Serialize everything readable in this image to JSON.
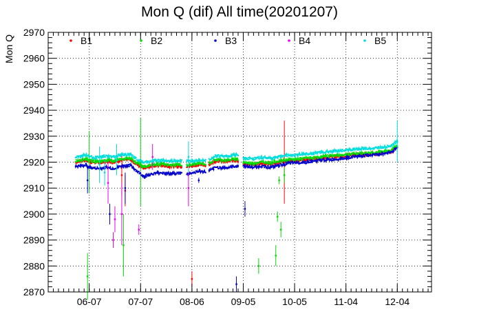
{
  "chart_data": {
    "type": "scatter",
    "title": "Mon Q (dif) All time(20201207)",
    "xlabel": "",
    "ylabel": "Mon Q",
    "x_axis": "date",
    "xlim": [
      "2020-05-14",
      "2020-12-24"
    ],
    "ylim": [
      2870,
      2970
    ],
    "yticks": [
      2870,
      2880,
      2890,
      2900,
      2910,
      2920,
      2930,
      2940,
      2950,
      2960,
      2970
    ],
    "xticks": [
      "06-07",
      "07-07",
      "08-06",
      "09-05",
      "10-05",
      "11-04",
      "12-04"
    ],
    "xtick_dates": [
      "2020-06-07",
      "2020-07-07",
      "2020-08-06",
      "2020-09-05",
      "2020-10-05",
      "2020-11-04",
      "2020-12-04"
    ],
    "grid": true,
    "legend_position": "top",
    "series": [
      {
        "name": "B1",
        "color": "#ff0000",
        "trend": [
          [
            "2020-05-30",
            2920.0
          ],
          [
            "2020-06-05",
            2920.8
          ],
          [
            "2020-06-08",
            2920.0
          ],
          [
            "2020-06-13",
            2919.8
          ],
          [
            "2020-06-17",
            2920.3
          ],
          [
            "2020-06-21",
            2920.0
          ],
          [
            "2020-06-26",
            2920.8
          ],
          [
            "2020-07-01",
            2921.0
          ],
          [
            "2020-07-05",
            2919.0
          ],
          [
            "2020-07-09",
            2917.8
          ],
          [
            "2020-07-14",
            2918.5
          ],
          [
            "2020-07-19",
            2918.8
          ],
          [
            "2020-07-24",
            2918.3
          ],
          [
            "2020-07-29",
            2918.6
          ],
          [
            "2020-08-04",
            2918.3
          ],
          [
            "2020-08-10",
            2919.0
          ],
          [
            "2020-08-15",
            2918.7
          ],
          [
            "2020-08-20",
            2920.5
          ],
          [
            "2020-08-26",
            2920.2
          ],
          [
            "2020-09-01",
            2920.8
          ],
          [
            "2020-09-06",
            2919.3
          ],
          [
            "2020-09-11",
            2919.1
          ],
          [
            "2020-09-16",
            2919.6
          ],
          [
            "2020-09-21",
            2919.3
          ],
          [
            "2020-09-26",
            2920.0
          ],
          [
            "2020-10-01",
            2920.4
          ],
          [
            "2020-10-06",
            2920.6
          ],
          [
            "2020-10-11",
            2921.0
          ],
          [
            "2020-10-16",
            2921.2
          ],
          [
            "2020-10-21",
            2921.6
          ],
          [
            "2020-10-26",
            2922.0
          ],
          [
            "2020-10-31",
            2922.2
          ],
          [
            "2020-11-05",
            2922.5
          ],
          [
            "2020-11-10",
            2922.8
          ],
          [
            "2020-11-15",
            2923.0
          ],
          [
            "2020-11-20",
            2923.2
          ],
          [
            "2020-11-25",
            2923.5
          ],
          [
            "2020-11-30",
            2924.0
          ],
          [
            "2020-12-04",
            2926.0
          ]
        ],
        "outliers": [
          [
            "2020-06-26",
            2915.0,
            8.0
          ],
          [
            "2020-06-28",
            2909.0,
            6.0
          ],
          [
            "2020-08-06",
            2875.0,
            3.0
          ],
          [
            "2020-09-29",
            2920.0,
            16.0
          ]
        ]
      },
      {
        "name": "B2",
        "color": "#00dd00",
        "trend": [
          [
            "2020-05-30",
            2920.5
          ],
          [
            "2020-06-05",
            2921.3
          ],
          [
            "2020-06-08",
            2920.5
          ],
          [
            "2020-06-13",
            2920.3
          ],
          [
            "2020-06-17",
            2920.8
          ],
          [
            "2020-06-21",
            2920.5
          ],
          [
            "2020-06-26",
            2921.3
          ],
          [
            "2020-07-01",
            2921.5
          ],
          [
            "2020-07-05",
            2919.5
          ],
          [
            "2020-07-09",
            2918.3
          ],
          [
            "2020-07-14",
            2919.0
          ],
          [
            "2020-07-19",
            2919.3
          ],
          [
            "2020-07-24",
            2918.8
          ],
          [
            "2020-07-29",
            2919.1
          ],
          [
            "2020-08-04",
            2918.8
          ],
          [
            "2020-08-10",
            2919.5
          ],
          [
            "2020-08-15",
            2919.2
          ],
          [
            "2020-08-20",
            2921.0
          ],
          [
            "2020-08-26",
            2920.7
          ],
          [
            "2020-09-01",
            2921.3
          ],
          [
            "2020-09-06",
            2919.8
          ],
          [
            "2020-09-11",
            2919.6
          ],
          [
            "2020-09-16",
            2920.1
          ],
          [
            "2020-09-21",
            2919.8
          ],
          [
            "2020-09-26",
            2920.5
          ],
          [
            "2020-10-01",
            2920.9
          ],
          [
            "2020-10-06",
            2921.1
          ],
          [
            "2020-10-11",
            2921.5
          ],
          [
            "2020-10-16",
            2921.7
          ],
          [
            "2020-10-21",
            2922.1
          ],
          [
            "2020-10-26",
            2922.5
          ],
          [
            "2020-10-31",
            2922.7
          ],
          [
            "2020-11-05",
            2923.0
          ],
          [
            "2020-11-10",
            2923.3
          ],
          [
            "2020-11-15",
            2923.5
          ],
          [
            "2020-11-20",
            2923.7
          ],
          [
            "2020-11-25",
            2924.0
          ],
          [
            "2020-11-30",
            2924.5
          ],
          [
            "2020-12-04",
            2926.5
          ]
        ],
        "outliers": [
          [
            "2020-06-06",
            2876.0,
            9.0
          ],
          [
            "2020-06-07",
            2920.0,
            12.0
          ],
          [
            "2020-06-27",
            2888.0,
            12.0
          ],
          [
            "2020-07-07",
            2920.0,
            17.0
          ],
          [
            "2020-09-14",
            2880.0,
            3.0
          ],
          [
            "2020-09-24",
            2884.0,
            4.0
          ],
          [
            "2020-09-25",
            2899.0,
            2.0
          ],
          [
            "2020-09-27",
            2894.0,
            3.0
          ],
          [
            "2020-09-26",
            2913.0,
            1.5
          ],
          [
            "2020-09-29",
            2915.0,
            3.0
          ]
        ]
      },
      {
        "name": "B3",
        "color": "#0000cc",
        "trend": [
          [
            "2020-05-30",
            2918.3
          ],
          [
            "2020-06-05",
            2918.8
          ],
          [
            "2020-06-08",
            2917.8
          ],
          [
            "2020-06-13",
            2917.5
          ],
          [
            "2020-06-17",
            2918.0
          ],
          [
            "2020-06-21",
            2917.5
          ],
          [
            "2020-06-26",
            2918.5
          ],
          [
            "2020-07-01",
            2918.8
          ],
          [
            "2020-07-05",
            2916.5
          ],
          [
            "2020-07-09",
            2914.5
          ],
          [
            "2020-07-14",
            2915.5
          ],
          [
            "2020-07-19",
            2916.0
          ],
          [
            "2020-07-24",
            2915.5
          ],
          [
            "2020-07-29",
            2915.8
          ],
          [
            "2020-08-04",
            2915.5
          ],
          [
            "2020-08-10",
            2916.5
          ],
          [
            "2020-08-15",
            2916.2
          ],
          [
            "2020-08-20",
            2918.0
          ],
          [
            "2020-08-26",
            2917.8
          ],
          [
            "2020-09-01",
            2918.5
          ],
          [
            "2020-09-06",
            2918.5
          ],
          [
            "2020-09-11",
            2918.0
          ],
          [
            "2020-09-16",
            2918.5
          ],
          [
            "2020-09-21",
            2918.0
          ],
          [
            "2020-09-26",
            2918.8
          ],
          [
            "2020-10-01",
            2919.5
          ],
          [
            "2020-10-06",
            2919.8
          ],
          [
            "2020-10-11",
            2920.0
          ],
          [
            "2020-10-16",
            2920.3
          ],
          [
            "2020-10-21",
            2920.8
          ],
          [
            "2020-10-26",
            2921.0
          ],
          [
            "2020-10-31",
            2921.3
          ],
          [
            "2020-11-05",
            2921.8
          ],
          [
            "2020-11-10",
            2922.2
          ],
          [
            "2020-11-15",
            2922.5
          ],
          [
            "2020-11-20",
            2922.8
          ],
          [
            "2020-11-25",
            2923.2
          ],
          [
            "2020-11-30",
            2923.8
          ],
          [
            "2020-12-04",
            2925.5
          ]
        ],
        "outliers": [
          [
            "2020-06-06",
            2913.0,
            5.0
          ],
          [
            "2020-06-19",
            2900.0,
            4.0
          ],
          [
            "2020-06-28",
            2910.0,
            6.0
          ],
          [
            "2020-08-10",
            2913.0,
            1.0
          ],
          [
            "2020-09-01",
            2873.0,
            3.0
          ],
          [
            "2020-09-06",
            2902.0,
            3.0
          ]
        ]
      },
      {
        "name": "B4",
        "color": "#ee00ee",
        "trend": [],
        "outliers": [
          [
            "2020-06-18",
            2912.0,
            8.0
          ],
          [
            "2020-06-21",
            2890.0,
            3.0
          ],
          [
            "2020-06-22",
            2898.0,
            5.0
          ],
          [
            "2020-06-26",
            2900.0,
            12.0
          ],
          [
            "2020-07-06",
            2894.0,
            2.0
          ],
          [
            "2020-07-14",
            2922.0,
            5.0
          ],
          [
            "2020-08-04",
            2910.0,
            7.0
          ]
        ]
      },
      {
        "name": "B5",
        "color": "#00dddd",
        "trend": [
          [
            "2020-05-30",
            2922.0
          ],
          [
            "2020-06-05",
            2922.8
          ],
          [
            "2020-06-08",
            2922.0
          ],
          [
            "2020-06-13",
            2921.8
          ],
          [
            "2020-06-17",
            2922.3
          ],
          [
            "2020-06-21",
            2922.0
          ],
          [
            "2020-06-26",
            2922.8
          ],
          [
            "2020-07-01",
            2923.0
          ],
          [
            "2020-07-05",
            2921.0
          ],
          [
            "2020-07-09",
            2919.8
          ],
          [
            "2020-07-14",
            2920.5
          ],
          [
            "2020-07-19",
            2920.8
          ],
          [
            "2020-07-24",
            2920.3
          ],
          [
            "2020-07-29",
            2920.6
          ],
          [
            "2020-08-04",
            2920.3
          ],
          [
            "2020-08-10",
            2921.0
          ],
          [
            "2020-08-15",
            2920.7
          ],
          [
            "2020-08-20",
            2922.5
          ],
          [
            "2020-08-26",
            2922.2
          ],
          [
            "2020-09-01",
            2922.8
          ],
          [
            "2020-09-06",
            2921.5
          ],
          [
            "2020-09-11",
            2921.3
          ],
          [
            "2020-09-16",
            2921.8
          ],
          [
            "2020-09-21",
            2921.5
          ],
          [
            "2020-09-26",
            2922.2
          ],
          [
            "2020-10-01",
            2922.6
          ],
          [
            "2020-10-06",
            2922.8
          ],
          [
            "2020-10-11",
            2923.2
          ],
          [
            "2020-10-16",
            2923.4
          ],
          [
            "2020-10-21",
            2923.8
          ],
          [
            "2020-10-26",
            2924.2
          ],
          [
            "2020-10-31",
            2924.4
          ],
          [
            "2020-11-05",
            2924.7
          ],
          [
            "2020-11-10",
            2925.0
          ],
          [
            "2020-11-15",
            2925.2
          ],
          [
            "2020-11-20",
            2925.4
          ],
          [
            "2020-11-25",
            2925.7
          ],
          [
            "2020-11-30",
            2926.2
          ],
          [
            "2020-12-04",
            2928.0
          ]
        ],
        "outliers": [
          [
            "2020-06-13",
            2919.0,
            7.0
          ],
          [
            "2020-06-16",
            2916.0,
            5.0
          ],
          [
            "2020-06-23",
            2921.0,
            6.0
          ],
          [
            "2020-08-04",
            2922.0,
            6.0
          ],
          [
            "2020-12-04",
            2928.0,
            8.0
          ]
        ]
      }
    ]
  }
}
